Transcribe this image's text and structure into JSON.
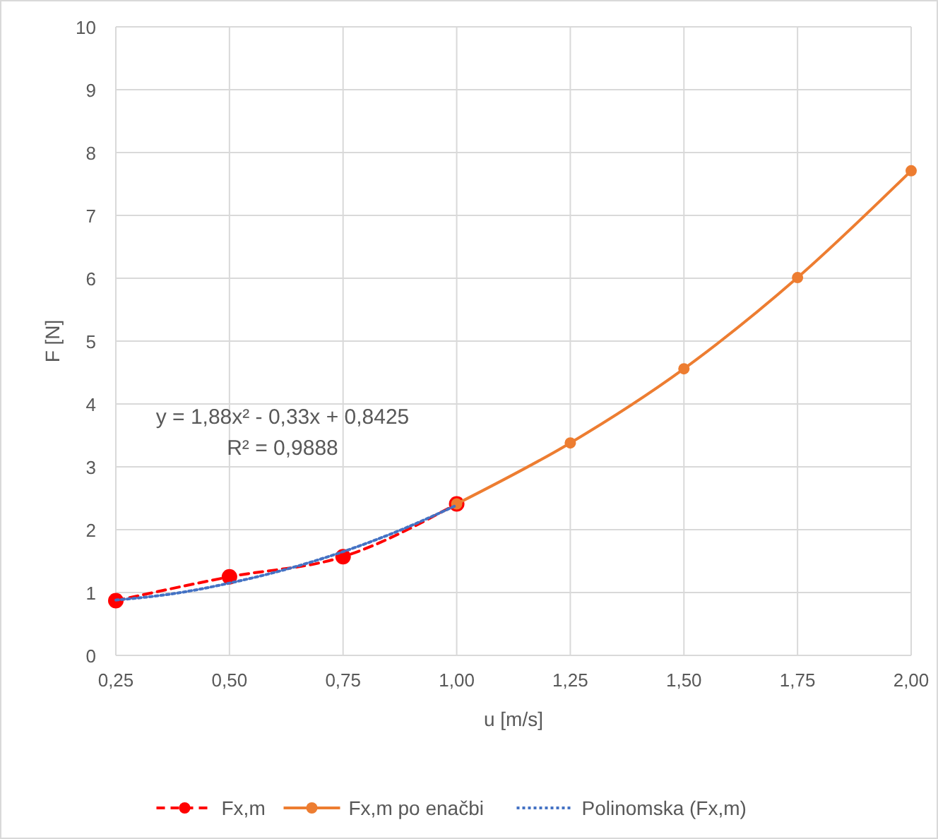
{
  "chart_data": {
    "type": "line",
    "xlabel": "u [m/s]",
    "ylabel": "F [N]",
    "xlim": [
      0.25,
      2.0
    ],
    "xticks": [
      {
        "value": 0.25,
        "label": "0,25"
      },
      {
        "value": 0.5,
        "label": "0,50"
      },
      {
        "value": 0.75,
        "label": "0,75"
      },
      {
        "value": 1.0,
        "label": "1,00"
      },
      {
        "value": 1.25,
        "label": "1,25"
      },
      {
        "value": 1.5,
        "label": "1,50"
      },
      {
        "value": 1.75,
        "label": "1,75"
      },
      {
        "value": 2.0,
        "label": "2,00"
      }
    ],
    "ylim": [
      0,
      10
    ],
    "yticks": [
      0,
      1,
      2,
      3,
      4,
      5,
      6,
      7,
      8,
      9,
      10
    ],
    "grid": true,
    "legend": "bottom",
    "annotations": [
      "y = 1,88x² - 0,33x + 0,8425",
      "R² = 0,9888"
    ],
    "series": [
      {
        "name": "Fx,m",
        "color": "#ff0000",
        "x": [
          0.25,
          0.5,
          0.75,
          1.0
        ],
        "values": [
          0.87,
          1.25,
          1.57,
          2.41
        ],
        "marker": "circle",
        "line_style": "dashed"
      },
      {
        "name": "Fx,m po enačbi",
        "color": "#ed7d31",
        "x": [
          1.0,
          1.25,
          1.5,
          1.75,
          2.0
        ],
        "values": [
          2.41,
          3.38,
          4.56,
          6.01,
          7.71
        ],
        "marker": "circle",
        "line_style": "solid"
      },
      {
        "name": "Polinomska (Fx,m)",
        "color": "#4472c4",
        "x": [
          0.25,
          0.375,
          0.5,
          0.625,
          0.75,
          0.875,
          1.0
        ],
        "values": [
          0.88,
          0.98,
          1.15,
          1.37,
          1.65,
          1.99,
          2.39
        ],
        "marker": "none",
        "line_style": "dotted"
      }
    ]
  }
}
